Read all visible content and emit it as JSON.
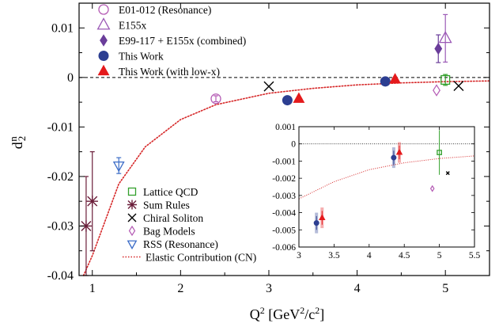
{
  "chart_data": {
    "type": "scatter",
    "ylabel": "d",
    "ylabel_sub": "2",
    "ylabel_sup": "n",
    "xlabel_parts": [
      "Q",
      "2",
      " [GeV",
      "2",
      "/c",
      "2",
      "]"
    ],
    "xlim": [
      0.85,
      5.5
    ],
    "ylim": [
      -0.04,
      0.015
    ],
    "xticks": [
      1,
      2,
      3,
      4,
      5
    ],
    "yticks": [
      {
        "v": -0.04,
        "label": "-0.04"
      },
      {
        "v": -0.03,
        "label": "-0.03"
      },
      {
        "v": -0.02,
        "label": "-0.02"
      },
      {
        "v": -0.01,
        "label": "-0.01"
      },
      {
        "v": 0,
        "label": "0"
      },
      {
        "v": 0.01,
        "label": "0.01"
      }
    ],
    "legend_top": [
      {
        "label": "E01-012 (Resonance)",
        "marker": "open-circle",
        "color": "#b45ab4"
      },
      {
        "label": "E155x",
        "marker": "open-triangle",
        "color": "#9b59b6"
      },
      {
        "label": "E99-117 + E155x (combined)",
        "marker": "filled-diamond",
        "color": "#6a3d9a"
      },
      {
        "label": "This Work",
        "marker": "filled-circle",
        "color": "#2c3e91"
      },
      {
        "label": "This Work (with low-x)",
        "marker": "filled-triangle",
        "color": "#e41a1c"
      }
    ],
    "legend_bottom": [
      {
        "label": "Lattice QCD",
        "marker": "open-square",
        "color": "#33a02c"
      },
      {
        "label": "Sum Rules",
        "marker": "asterisk",
        "color": "#6b1e3a"
      },
      {
        "label": "Chiral Soliton",
        "marker": "cross",
        "color": "#000000"
      },
      {
        "label": "Bag Models",
        "marker": "open-diamond",
        "color": "#b45ab4"
      },
      {
        "label": "RSS (Resonance)",
        "marker": "open-triangle-down",
        "color": "#3b6cc7"
      },
      {
        "label": "Elastic Contribution (CN)",
        "marker": "dotted-line",
        "color": "#d62728"
      }
    ],
    "series": [
      {
        "name": "E01-012 (Resonance)",
        "marker": "open-circle",
        "color": "#b45ab4",
        "points": [
          {
            "x": 2.4,
            "y": -0.0043,
            "err": 0.0006
          }
        ]
      },
      {
        "name": "E155x",
        "marker": "open-triangle",
        "color": "#9b59b6",
        "points": [
          {
            "x": 5.0,
            "y": 0.0079,
            "err": 0.0048
          }
        ]
      },
      {
        "name": "E99-117 + E155x (combined)",
        "marker": "filled-diamond",
        "color": "#6a3d9a",
        "points": [
          {
            "x": 4.92,
            "y": 0.0058,
            "err": 0.0028
          }
        ]
      },
      {
        "name": "This Work",
        "marker": "filled-circle",
        "color": "#2c3e91",
        "points": [
          {
            "x": 3.21,
            "y": -0.0046,
            "err": 0.0003
          },
          {
            "x": 4.32,
            "y": -0.0008,
            "err": 0.0003
          }
        ]
      },
      {
        "name": "This Work (with low-x)",
        "marker": "filled-triangle",
        "color": "#e41a1c",
        "points": [
          {
            "x": 3.34,
            "y": -0.0043,
            "err": 0.0003
          },
          {
            "x": 4.43,
            "y": -0.0004,
            "err": 0.0003
          }
        ]
      },
      {
        "name": "Lattice QCD",
        "marker": "open-square",
        "color": "#33a02c",
        "points": [
          {
            "x": 5.0,
            "y": -0.0005,
            "err": 0.0011
          }
        ]
      },
      {
        "name": "Sum Rules",
        "marker": "asterisk",
        "color": "#6b1e3a",
        "points": [
          {
            "x": 0.93,
            "y": -0.03,
            "err": 0.01
          },
          {
            "x": 1.0,
            "y": -0.025,
            "err": 0.01
          }
        ]
      },
      {
        "name": "Chiral Soliton",
        "marker": "cross",
        "color": "#000000",
        "points": [
          {
            "x": 3.0,
            "y": -0.0018
          },
          {
            "x": 5.15,
            "y": -0.0017
          }
        ]
      },
      {
        "name": "Bag Models",
        "marker": "open-diamond",
        "color": "#b45ab4",
        "points": [
          {
            "x": 4.9,
            "y": -0.0026
          }
        ]
      },
      {
        "name": "RSS (Resonance)",
        "marker": "open-triangle-down",
        "color": "#3b6cc7",
        "points": [
          {
            "x": 1.3,
            "y": -0.0178,
            "err": 0.0016
          }
        ]
      }
    ],
    "elastic_curve": {
      "name": "Elastic Contribution (CN)",
      "color": "#d62728",
      "style": "dotted",
      "x_from": 0.9,
      "x_to": 5.5,
      "points": [
        [
          0.9,
          -0.0435
        ],
        [
          1.0,
          -0.036
        ],
        [
          1.3,
          -0.0215
        ],
        [
          1.6,
          -0.014
        ],
        [
          2.0,
          -0.0085
        ],
        [
          2.4,
          -0.0055
        ],
        [
          3.0,
          -0.0032
        ],
        [
          3.5,
          -0.0022
        ],
        [
          4.0,
          -0.0015
        ],
        [
          4.5,
          -0.0011
        ],
        [
          5.0,
          -0.00085
        ],
        [
          5.5,
          -0.0007
        ]
      ]
    },
    "inset": {
      "xlim": [
        3,
        5.5
      ],
      "ylim": [
        -0.006,
        0.001
      ],
      "xticks": [
        {
          "v": 3,
          "label": "3"
        },
        {
          "v": 3.5,
          "label": "3.5"
        },
        {
          "v": 4,
          "label": "4"
        },
        {
          "v": 4.5,
          "label": "4.5"
        },
        {
          "v": 5,
          "label": "5"
        },
        {
          "v": 5.5,
          "label": "5.5"
        }
      ],
      "yticks": [
        {
          "v": 0.001,
          "label": "0.001"
        },
        {
          "v": 0,
          "label": "0"
        },
        {
          "v": -0.001,
          "label": "-0.001"
        },
        {
          "v": -0.002,
          "label": "-0.002"
        },
        {
          "v": -0.003,
          "label": "-0.003"
        },
        {
          "v": -0.004,
          "label": "-0.004"
        },
        {
          "v": -0.005,
          "label": "-0.005"
        },
        {
          "v": -0.006,
          "label": "-0.006"
        }
      ],
      "points": [
        {
          "x": 3.25,
          "y": -0.0046,
          "err": 0.0004,
          "err_wide": 0.0006,
          "marker": "filled-circle",
          "color": "#2c3e91"
        },
        {
          "x": 3.33,
          "y": -0.0043,
          "err": 0.0004,
          "err_wide": 0.0006,
          "marker": "filled-triangle",
          "color": "#e41a1c"
        },
        {
          "x": 4.35,
          "y": -0.0008,
          "err": 0.0004,
          "err_wide": 0.0006,
          "marker": "filled-circle",
          "color": "#2c3e91"
        },
        {
          "x": 4.43,
          "y": -0.0005,
          "err": 0.0004,
          "err_wide": 0.0006,
          "marker": "filled-triangle",
          "color": "#e41a1c"
        },
        {
          "x": 5.0,
          "y": -0.0005,
          "err": 0.0013,
          "marker": "open-square",
          "color": "#33a02c"
        },
        {
          "x": 5.12,
          "y": -0.0017,
          "marker": "cross",
          "color": "#000000"
        },
        {
          "x": 4.9,
          "y": -0.0026,
          "marker": "open-diamond",
          "color": "#b45ab4"
        }
      ]
    }
  }
}
